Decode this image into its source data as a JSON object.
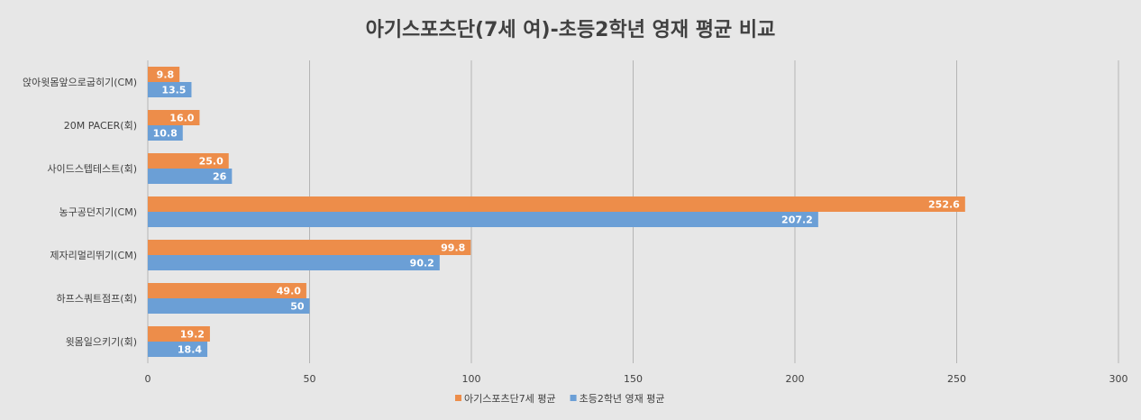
{
  "chart_data": {
    "type": "bar",
    "orientation": "horizontal",
    "title": "아기스포츠단(7세 여)-초등2학년 영재 평균 비교",
    "xlabel": "",
    "ylabel": "",
    "xlim": [
      0,
      300
    ],
    "xticks": [
      0,
      50,
      100,
      150,
      200,
      250,
      300
    ],
    "grid": true,
    "legend_position": "bottom",
    "categories": [
      "앉아윗몸앞으로굽히기(CM)",
      "20M PACER(회)",
      "사이드스텝테스트(회)",
      "농구공던지기(CM)",
      "제자리멀리뛰기(CM)",
      "하프스쿼트점프(회)",
      "윗몸일으키기(회)"
    ],
    "series": [
      {
        "name": "아기스포츠단7세 평균",
        "color": "#ed8d4a",
        "values": [
          9.8,
          16.0,
          25.0,
          252.6,
          99.8,
          49.0,
          19.2
        ],
        "labels": [
          "9.8",
          "16.0",
          "25.0",
          "252.6",
          "99.8",
          "49.0",
          "19.2"
        ]
      },
      {
        "name": "초등2학년 영재 평균",
        "color": "#6b9fd6",
        "values": [
          13.5,
          10.8,
          26,
          207.2,
          90.2,
          50,
          18.4
        ],
        "labels": [
          "13.5",
          "10.8",
          "26",
          "207.2",
          "90.2",
          "50",
          "18.4"
        ]
      }
    ]
  }
}
